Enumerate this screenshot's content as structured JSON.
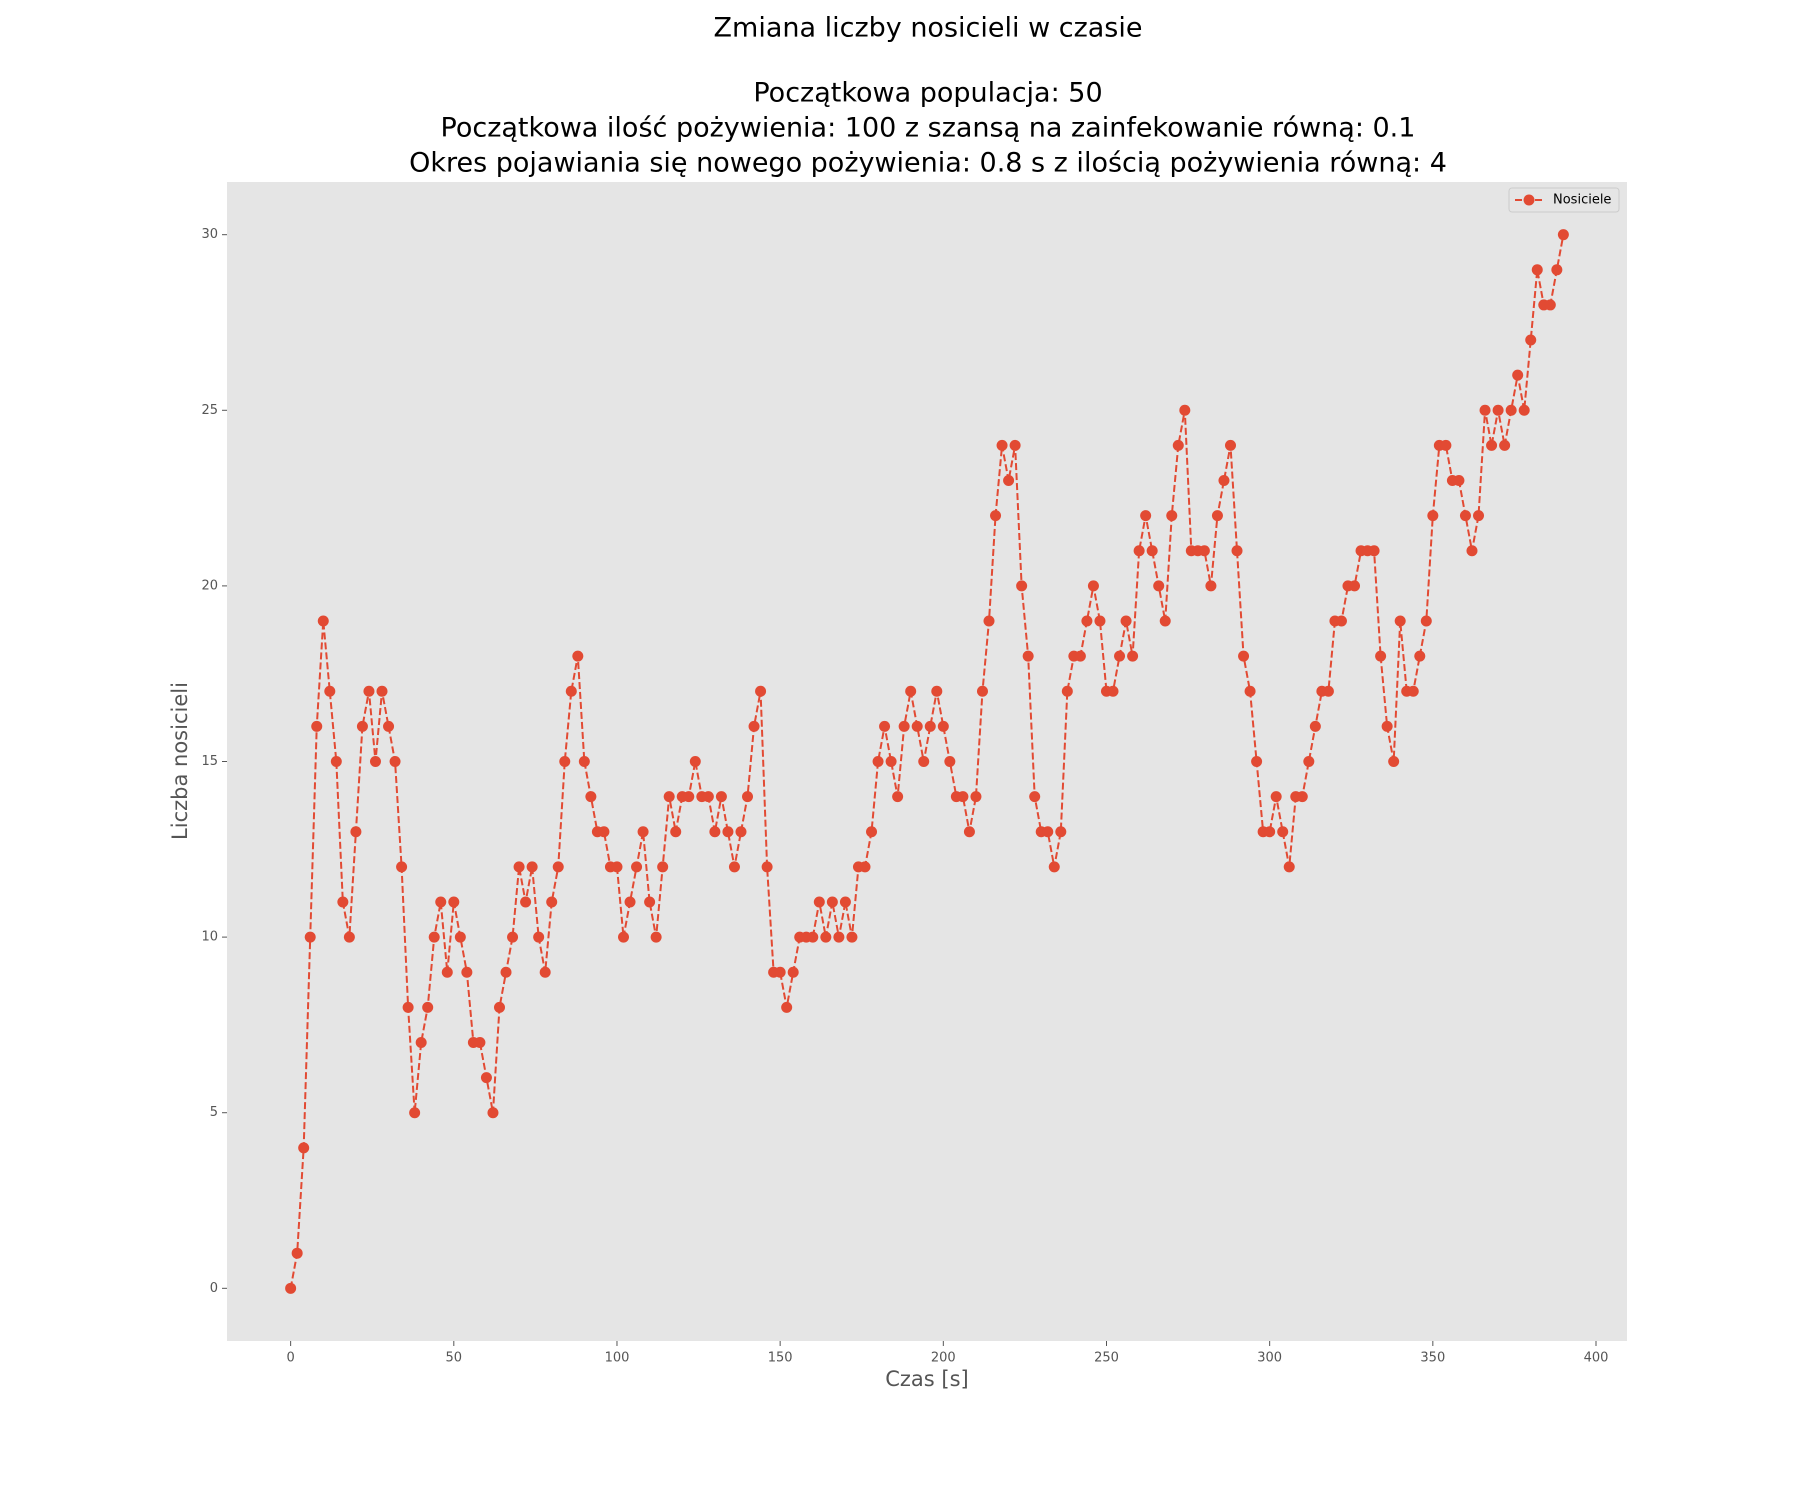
{
  "chart_data": {
    "type": "line",
    "title": "Zmiana liczby nosicieli w czasie",
    "subtitle": [
      "Początkowa populacja: 50",
      "Początkowa ilość pożywienia: 100 z szansą na zainfekowanie równą: 0.1",
      "Okres pojawiania się nowego pożywienia: 0.8 s z ilością pożywienia równą: 4"
    ],
    "x_label": "Czas [s]",
    "y_label": "Liczba nosicieli",
    "x": [
      0,
      2,
      4,
      6,
      8,
      10,
      12,
      14,
      16,
      18,
      20,
      22,
      24,
      26,
      28,
      30,
      32,
      34,
      36,
      38,
      40,
      42,
      44,
      46,
      48,
      50,
      52,
      54,
      56,
      58,
      60,
      62,
      64,
      66,
      68,
      70,
      72,
      74,
      76,
      78,
      80,
      82,
      84,
      86,
      88,
      90,
      92,
      94,
      96,
      98,
      100,
      102,
      104,
      106,
      108,
      110,
      112,
      114,
      116,
      118,
      120,
      122,
      124,
      126,
      128,
      130,
      132,
      134,
      136,
      138,
      140,
      142,
      144,
      146,
      148,
      150,
      152,
      154,
      156,
      158,
      160,
      162,
      164,
      166,
      168,
      170,
      172,
      174,
      176,
      178,
      180,
      182,
      184,
      186,
      188,
      190,
      192,
      194,
      196,
      198,
      200,
      202,
      204,
      206,
      208,
      210,
      212,
      214,
      216,
      218,
      220,
      222,
      224,
      226,
      228,
      230,
      232,
      234,
      236,
      238,
      240,
      242,
      244,
      246,
      248,
      250,
      252,
      254,
      256,
      258,
      260,
      262,
      264,
      266,
      268,
      270,
      272,
      274,
      276,
      278,
      280,
      282,
      284,
      286,
      288,
      290,
      292,
      294,
      296,
      298,
      300,
      302,
      304,
      306,
      308,
      310,
      312,
      314,
      316,
      318,
      320,
      322,
      324,
      326,
      328,
      330,
      332,
      334,
      336,
      338,
      340,
      342,
      344,
      346,
      348,
      350,
      352,
      354,
      356,
      358,
      360,
      362,
      364,
      366,
      368,
      370,
      372,
      374,
      376,
      378,
      380,
      382,
      384,
      386,
      388,
      390
    ],
    "series": [
      {
        "name": "Nosiciele",
        "color": "#E24A33",
        "values": [
          0,
          1,
          4,
          10,
          16,
          19,
          17,
          15,
          11,
          10,
          13,
          16,
          17,
          15,
          17,
          16,
          15,
          12,
          8,
          5,
          7,
          8,
          10,
          11,
          9,
          11,
          10,
          9,
          7,
          7,
          6,
          5,
          8,
          9,
          10,
          12,
          11,
          12,
          10,
          9,
          11,
          12,
          15,
          17,
          18,
          15,
          14,
          13,
          13,
          12,
          12,
          10,
          11,
          12,
          13,
          11,
          10,
          12,
          14,
          13,
          14,
          14,
          15,
          14,
          14,
          13,
          14,
          13,
          12,
          13,
          14,
          16,
          17,
          12,
          9,
          9,
          8,
          9,
          10,
          10,
          10,
          11,
          10,
          11,
          10,
          11,
          10,
          12,
          12,
          13,
          15,
          16,
          15,
          14,
          16,
          17,
          16,
          15,
          16,
          17,
          16,
          15,
          14,
          14,
          13,
          14,
          17,
          19,
          22,
          24,
          23,
          24,
          20,
          18,
          14,
          13,
          13,
          12,
          13,
          17,
          18,
          18,
          19,
          20,
          19,
          17,
          17,
          18,
          19,
          18,
          21,
          22,
          21,
          20,
          19,
          22,
          24,
          25,
          21,
          21,
          21,
          20,
          22,
          23,
          24,
          21,
          18,
          17,
          15,
          13,
          13,
          14,
          13,
          12,
          14,
          14,
          15,
          16,
          17,
          17,
          19,
          19,
          20,
          20,
          21,
          21,
          21,
          18,
          16,
          15,
          19,
          17,
          17,
          18,
          19,
          22,
          24,
          24,
          23,
          23,
          22,
          21,
          22,
          25,
          24,
          25,
          24,
          25,
          26,
          25,
          27,
          29,
          28,
          28,
          29,
          30
        ]
      }
    ],
    "xlim": [
      -19.5,
      409.5
    ],
    "xticks": [
      0,
      50,
      100,
      150,
      200,
      250,
      300,
      350,
      400
    ],
    "ylim": [
      -1.5,
      31.5
    ],
    "yticks": [
      0,
      5,
      10,
      15,
      20,
      25,
      30
    ],
    "grid": false,
    "legend": "upper right"
  }
}
